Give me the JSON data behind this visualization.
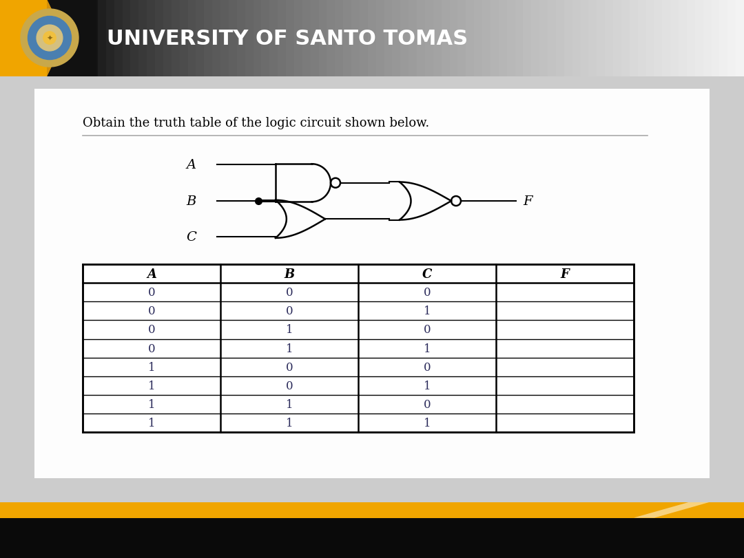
{
  "title": "UNIVERSITY OF SANTO TOMAS",
  "question": "Obtain the truth table of the logic circuit shown below.",
  "table_headers": [
    "A",
    "B",
    "C",
    "F"
  ],
  "table_data": [
    [
      "0",
      "0",
      "0",
      ""
    ],
    [
      "0",
      "0",
      "1",
      ""
    ],
    [
      "0",
      "1",
      "0",
      ""
    ],
    [
      "0",
      "1",
      "1",
      ""
    ],
    [
      "1",
      "0",
      "0",
      ""
    ],
    [
      "1",
      "0",
      "1",
      ""
    ],
    [
      "1",
      "1",
      "0",
      ""
    ],
    [
      "1",
      "1",
      "1",
      ""
    ]
  ],
  "yellow_color": "#f0a500",
  "dark_yellow": "#d4900a",
  "table_text_color": "#2a2a5a",
  "bg_slide": "#c8c8c8",
  "white": "#ffffff",
  "black": "#000000",
  "header_black": "#111111",
  "line_gray": "#999999"
}
